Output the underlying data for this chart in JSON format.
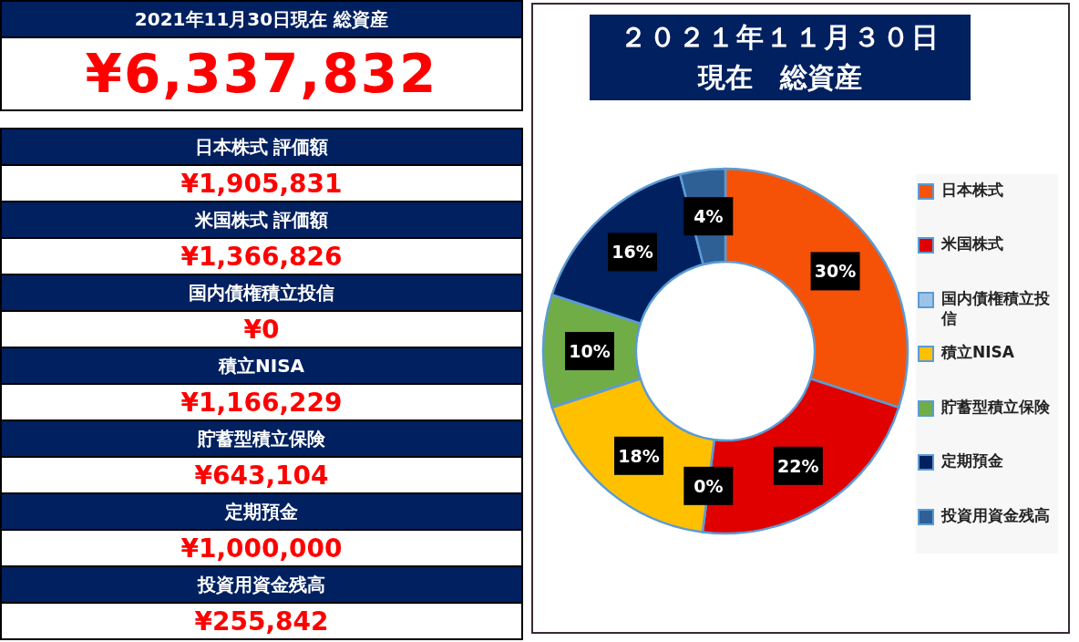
{
  "chart_data": [
    {
      "type": "other",
      "title": "2021年11月30日現在 総資産",
      "subtitle": "¥6,337,832",
      "categories": [
        "日本株式 評価額",
        "米国株式 評価額",
        "国内債権積立投信",
        "積立NISA",
        "貯蓄型積立保険",
        "定期預金",
        "投資用資金残高"
      ],
      "value_labels": [
        "¥1,905,831",
        "¥1,366,826",
        "¥0",
        "¥1,166,229",
        "¥643,104",
        "¥1,000,000",
        "¥255,842"
      ]
    },
    {
      "type": "donut",
      "title": "２０２１年１１月３０日",
      "subtitle": "現在　総資産",
      "categories": [
        "日本株式",
        "米国株式",
        "国内債権積立投信",
        "積立NISA",
        "貯蓄型積立保険",
        "定期預金",
        "投資用資金残高"
      ],
      "values": [
        30,
        22,
        0,
        18,
        10,
        16,
        4
      ],
      "colors": [
        "#f55208",
        "#e00000",
        "#9dc3e6",
        "#ffc000",
        "#70ad47",
        "#002060",
        "#2e6096"
      ],
      "value_labels": [
        "30%",
        "22%",
        "0%",
        "18%",
        "10%",
        "16%",
        "4%"
      ],
      "legend": "right"
    }
  ]
}
